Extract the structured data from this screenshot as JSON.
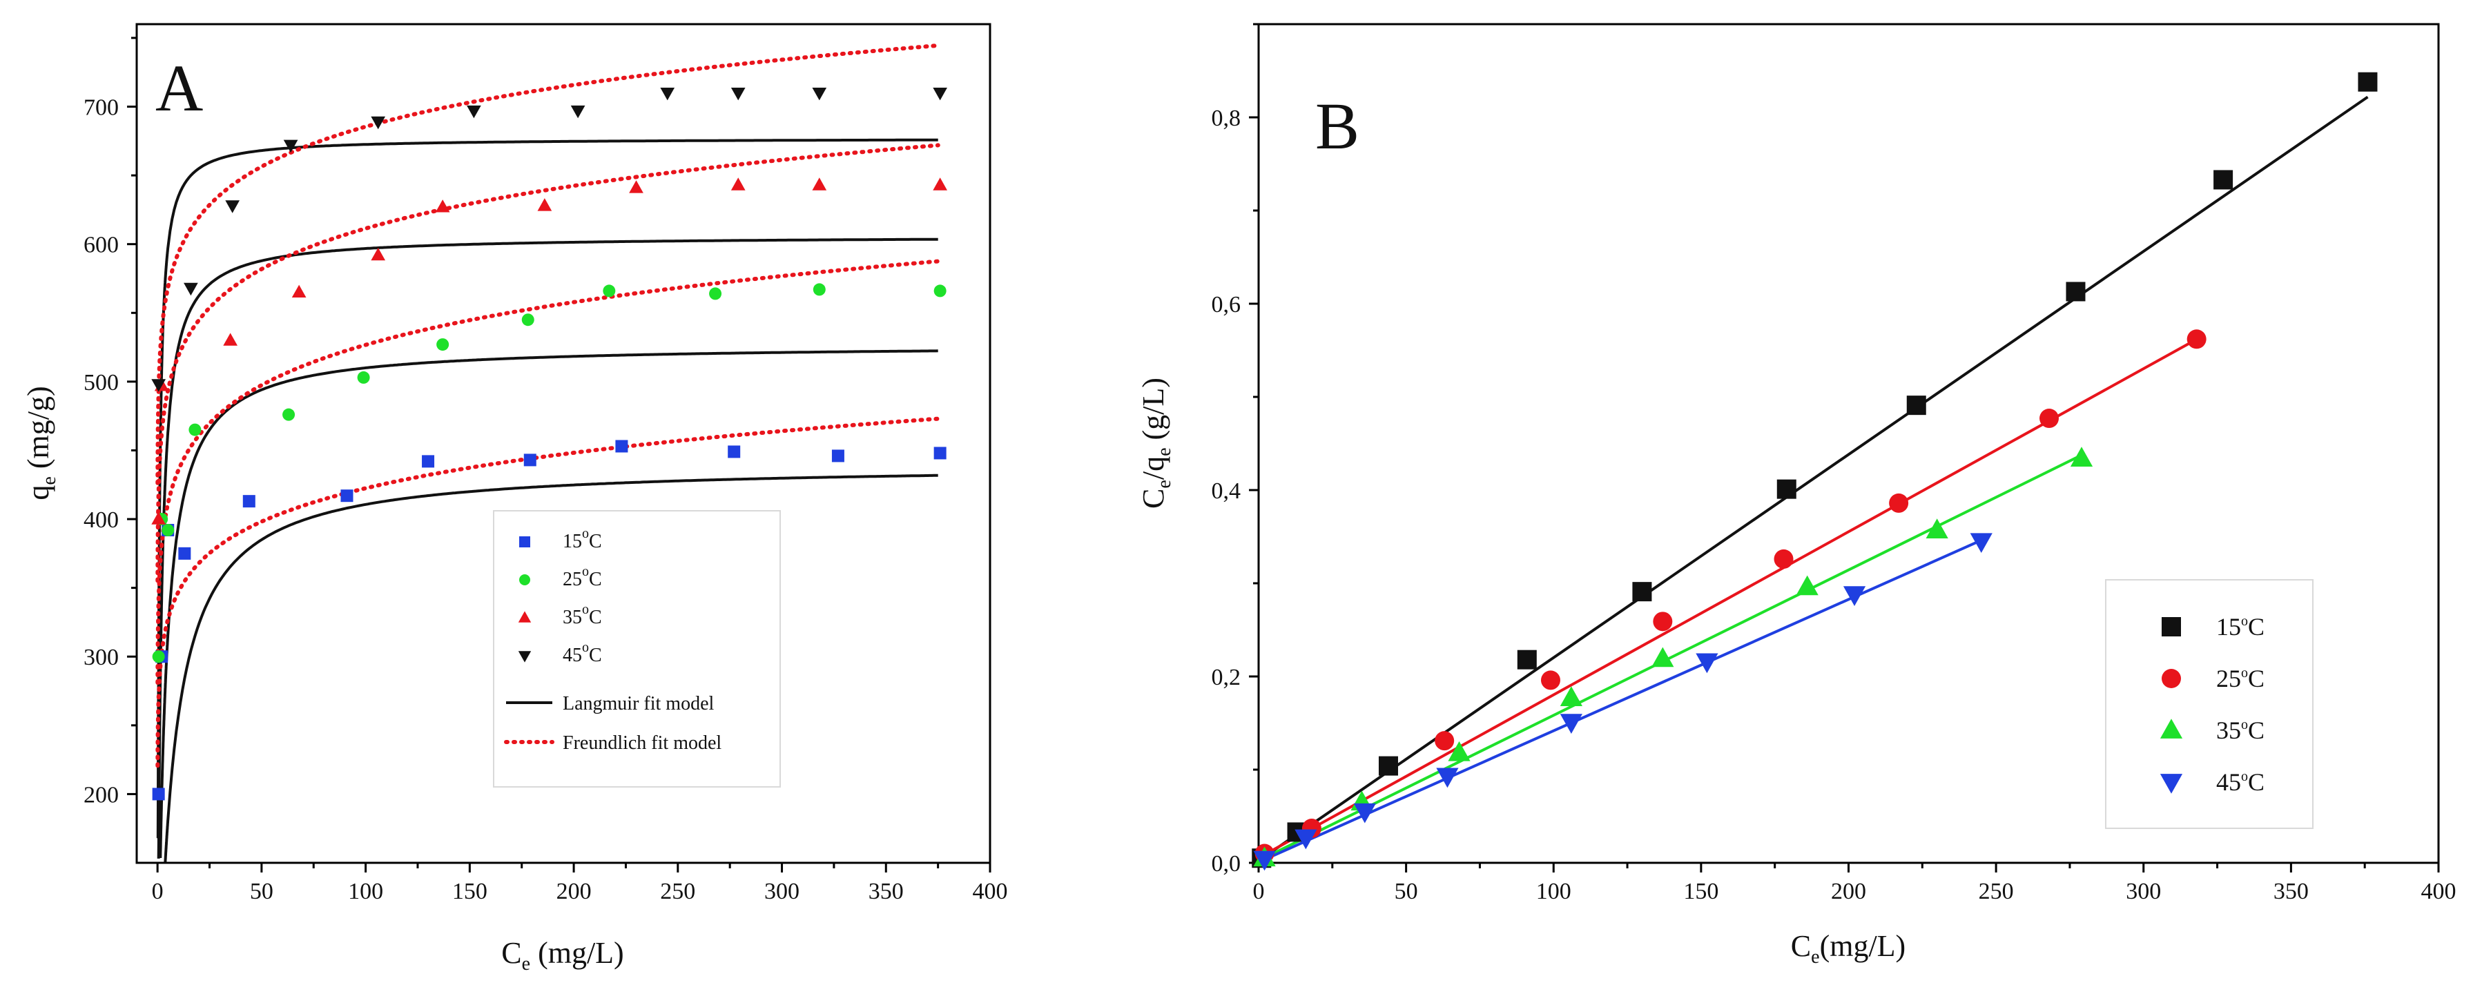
{
  "chart_data": [
    {
      "panel": "A",
      "type": "scatter",
      "xlabel_main": "C",
      "xlabel_sub": "e",
      "xlabel_rest": " (mg/L)",
      "ylabel_main": "q",
      "ylabel_sub": "e",
      "ylabel_rest": " (mg/g)",
      "xlim": [
        -10,
        400
      ],
      "ylim": [
        150,
        760
      ],
      "xticks": [
        0,
        50,
        100,
        150,
        200,
        250,
        300,
        350,
        400
      ],
      "yticks": [
        200,
        300,
        400,
        500,
        600,
        700
      ],
      "xtick_labels": [
        "0",
        "50",
        "100",
        "150",
        "200",
        "250",
        "300",
        "350",
        "400"
      ],
      "ytick_labels": [
        "200",
        "300",
        "400",
        "500",
        "600",
        "700"
      ],
      "legend_position": "center-right",
      "series": [
        {
          "name": "15",
          "suffix": "C",
          "color": "#1f3fe0",
          "marker": "square",
          "x": [
            0.5,
            2,
            5,
            13,
            44,
            91,
            130,
            179,
            223,
            277,
            327,
            376
          ],
          "y": [
            200,
            300,
            392,
            375,
            413,
            417,
            442,
            443,
            453,
            449,
            446,
            448
          ]
        },
        {
          "name": "25",
          "suffix": "C",
          "color": "#1ee02a",
          "marker": "circle",
          "x": [
            0.5,
            2,
            5,
            18,
            63,
            99,
            137,
            178,
            217,
            268,
            318,
            376
          ],
          "y": [
            300,
            400,
            392,
            465,
            476,
            503,
            527,
            545,
            566,
            564,
            567,
            566
          ]
        },
        {
          "name": "35",
          "suffix": "C",
          "color": "#e8141c",
          "marker": "triangle-up",
          "x": [
            0.5,
            2,
            35,
            68,
            106,
            137,
            186,
            230,
            279,
            318,
            376
          ],
          "y": [
            400,
            497,
            530,
            565,
            592,
            627,
            628,
            641,
            643,
            643,
            643
          ]
        },
        {
          "name": "45",
          "suffix": "C",
          "color": "#111111",
          "marker": "triangle-down",
          "x": [
            0.5,
            16,
            36,
            64,
            106,
            152,
            202,
            245,
            279,
            318,
            376
          ],
          "y": [
            498,
            568,
            628,
            672,
            689,
            697,
            697,
            710,
            710,
            710,
            710
          ]
        }
      ],
      "fits": [
        {
          "name": "Langmuir fit model",
          "color": "#111111",
          "style": "solid",
          "curves": [
            {
              "qmax": 440,
              "KL": 0.14
            },
            {
              "qmax": 527,
              "KL": 0.3
            },
            {
              "qmax": 606,
              "KL": 0.65
            },
            {
              "qmax": 677,
              "KL": 1.5
            }
          ]
        },
        {
          "name": "Freundlich fit model",
          "color": "#e8141c",
          "style": "dotted",
          "curves": [
            {
              "Kf": 285,
              "n": 11.7
            },
            {
              "Kf": 360,
              "n": 12.1
            },
            {
              "Kf": 440,
              "n": 14.0
            },
            {
              "Kf": 514,
              "n": 16.0
            }
          ]
        }
      ]
    },
    {
      "panel": "B",
      "type": "scatter",
      "xlabel_main": "C",
      "xlabel_sub": "e",
      "xlabel_rest": "(mg/L)",
      "ylabel_main": "C",
      "ylabel_sub1": "e",
      "ylabel_mid": "/q",
      "ylabel_sub2": "e",
      "ylabel_rest": " (g/L)",
      "xlim": [
        0,
        400
      ],
      "ylim": [
        0,
        0.9
      ],
      "xticks": [
        0,
        50,
        100,
        150,
        200,
        250,
        300,
        350,
        400
      ],
      "yticks": [
        0,
        0.2,
        0.4,
        0.6,
        0.8
      ],
      "xtick_labels": [
        "0",
        "50",
        "100",
        "150",
        "200",
        "250",
        "300",
        "350",
        "400"
      ],
      "ytick_labels": [
        "0,0",
        "0,2",
        "0,4",
        "0,6",
        "0,8"
      ],
      "legend_position": "lower-right",
      "series": [
        {
          "name": "15",
          "suffix": "C",
          "color": "#111111",
          "marker": "square",
          "x": [
            1,
            13,
            44,
            91,
            130,
            179,
            223,
            277,
            327,
            376
          ],
          "y": [
            0.005,
            0.033,
            0.104,
            0.218,
            0.291,
            0.401,
            0.491,
            0.613,
            0.733,
            0.838
          ],
          "fit": [
            0.0022,
            0.00218
          ]
        },
        {
          "name": "25",
          "suffix": "C",
          "color": "#e8141c",
          "marker": "circle",
          "x": [
            2,
            18,
            63,
            99,
            137,
            178,
            217,
            268,
            318
          ],
          "y": [
            0.01,
            0.037,
            0.131,
            0.196,
            0.259,
            0.326,
            0.386,
            0.477,
            0.562
          ],
          "fit": [
            0.0053,
            0.00175
          ]
        },
        {
          "name": "35",
          "suffix": "C",
          "color": "#1ee02a",
          "marker": "triangle-up",
          "x": [
            2,
            35,
            68,
            106,
            137,
            186,
            230,
            279
          ],
          "y": [
            0.005,
            0.065,
            0.118,
            0.177,
            0.219,
            0.296,
            0.357,
            0.434
          ],
          "fit": [
            0.0023,
            0.00156
          ]
        },
        {
          "name": "45",
          "suffix": "C",
          "color": "#1f3fe0",
          "marker": "triangle-down",
          "x": [
            2,
            16,
            36,
            64,
            106,
            152,
            202,
            245
          ],
          "y": [
            0.004,
            0.027,
            0.055,
            0.093,
            0.151,
            0.216,
            0.288,
            0.345
          ],
          "fit": [
            0.0007,
            0.00141
          ]
        }
      ]
    }
  ],
  "panel_a": {
    "letter": "A"
  },
  "panel_b": {
    "letter": "B"
  }
}
